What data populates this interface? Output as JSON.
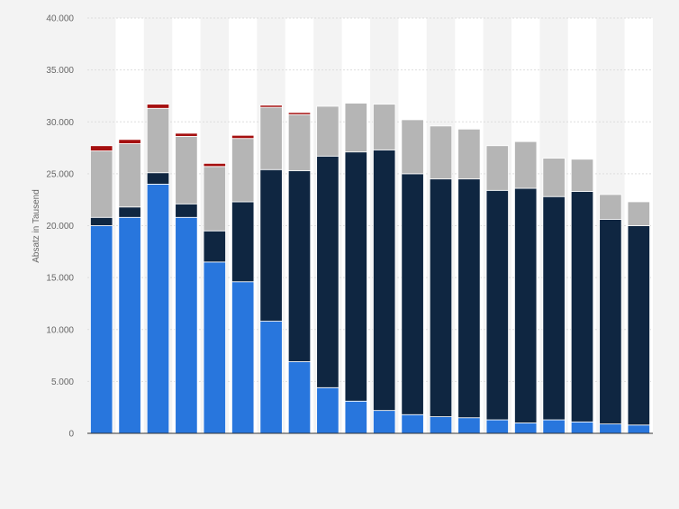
{
  "chart_data": {
    "type": "bar",
    "stacked": true,
    "ylabel": "Absatz in Tausend",
    "xlabel": "",
    "ylim": [
      0,
      40000
    ],
    "yticks": [
      0,
      5000,
      10000,
      15000,
      20000,
      25000,
      30000,
      35000,
      40000
    ],
    "ytick_labels": [
      "0",
      "5.000",
      "10.000",
      "15.000",
      "20.000",
      "25.000",
      "30.000",
      "35.000",
      "40.000"
    ],
    "grid": true,
    "legend": "none",
    "colors": {
      "series_1": "#2876dd",
      "series_2": "#0f2641",
      "series_3": "#b5b5b5",
      "series_4": "#a50f0f",
      "band": "#ffffff",
      "grid": "#dddddd",
      "axis": "#333333"
    },
    "series": [
      {
        "values": [
          20000,
          20800,
          24000,
          20800,
          16500,
          14600,
          10800,
          6900,
          4400,
          3100,
          2200,
          1800,
          1600,
          1500,
          1300,
          1000,
          1300,
          1100,
          900,
          800
        ]
      },
      {
        "values": [
          800,
          1000,
          1100,
          1300,
          3000,
          7700,
          14600,
          18400,
          22300,
          24000,
          25100,
          23200,
          22900,
          23000,
          22100,
          22600,
          21500,
          22200,
          19700,
          19200
        ]
      },
      {
        "values": [
          6400,
          6100,
          6200,
          6500,
          6200,
          6100,
          6000,
          5400,
          4800,
          4700,
          4400,
          5200,
          5100,
          4800,
          4300,
          4500,
          3700,
          3100,
          2400,
          2300
        ]
      },
      {
        "values": [
          500,
          400,
          400,
          300,
          300,
          300,
          200,
          200,
          0,
          0,
          0,
          0,
          0,
          0,
          0,
          0,
          0,
          0,
          0,
          0
        ]
      }
    ]
  }
}
